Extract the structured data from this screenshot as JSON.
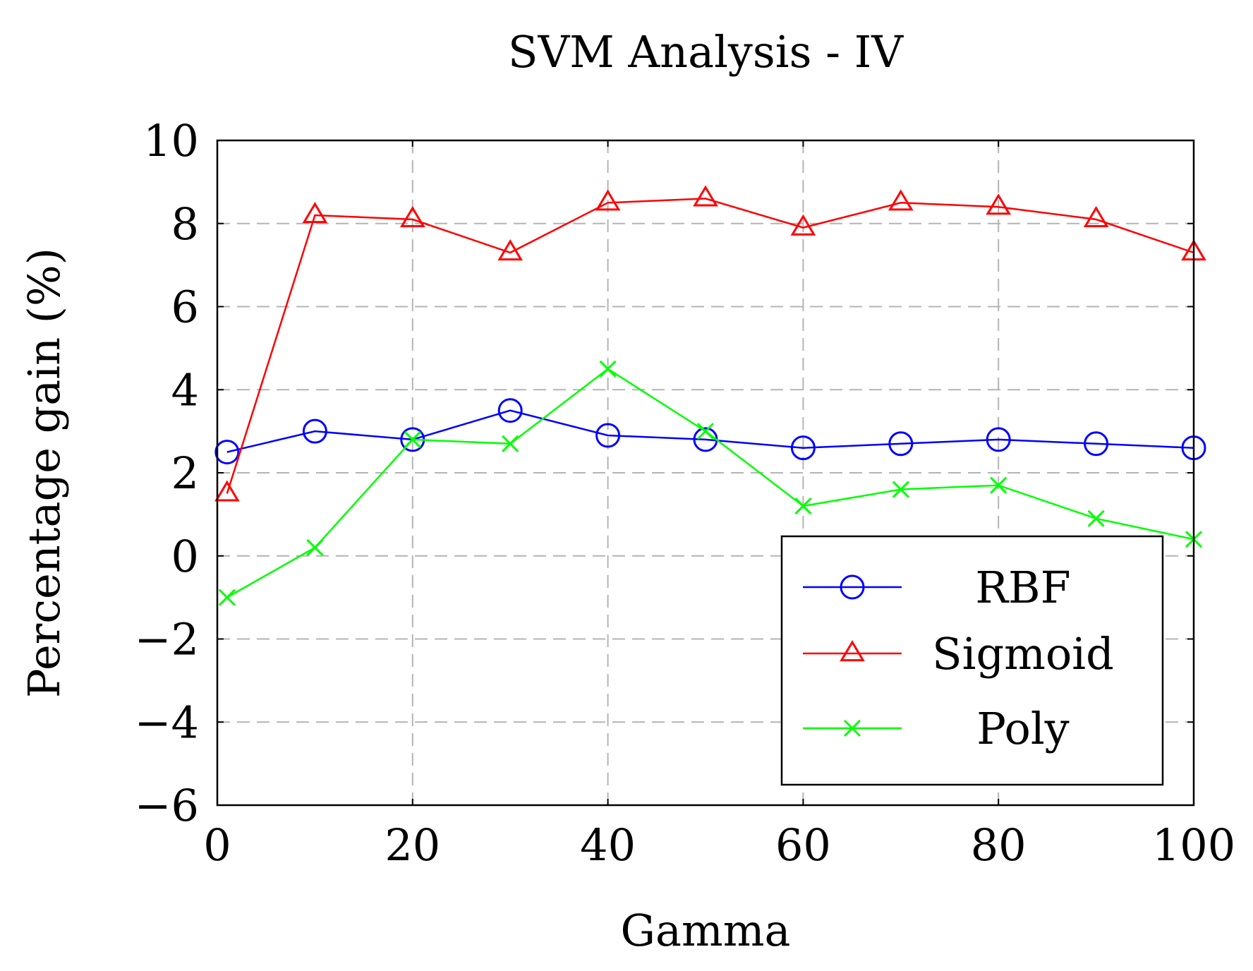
{
  "chart_data": {
    "type": "line",
    "title": "SVM Analysis - IV",
    "xlabel": "Gamma",
    "ylabel": "Percentage gain (%)",
    "xlim": [
      0,
      100
    ],
    "ylim": [
      -6,
      10
    ],
    "xticks": [
      0,
      20,
      40,
      60,
      80,
      100
    ],
    "xtick_labels": [
      "0",
      "20",
      "40",
      "60",
      "80",
      "100"
    ],
    "yticks": [
      -6,
      -4,
      -2,
      0,
      2,
      4,
      6,
      8,
      10
    ],
    "ytick_labels": [
      "−6",
      "−4",
      "−2",
      "0",
      "2",
      "4",
      "6",
      "8",
      "10"
    ],
    "grid": true,
    "legend_position": "bottom-right",
    "x": [
      1,
      10,
      20,
      30,
      40,
      50,
      60,
      70,
      80,
      90,
      100
    ],
    "series": [
      {
        "name": "RBF",
        "color": "#0000ff",
        "marker": "circle",
        "values": [
          2.5,
          3.0,
          2.8,
          3.5,
          2.9,
          2.8,
          2.6,
          2.7,
          2.8,
          2.7,
          2.6
        ]
      },
      {
        "name": "Sigmoid",
        "color": "#ff0000",
        "marker": "triangle",
        "values": [
          1.5,
          8.2,
          8.1,
          7.3,
          8.5,
          8.6,
          7.9,
          8.5,
          8.4,
          8.1,
          7.3
        ]
      },
      {
        "name": "Poly",
        "color": "#00ff00",
        "marker": "x",
        "values": [
          -1.0,
          0.2,
          2.8,
          2.7,
          4.5,
          3.0,
          1.2,
          1.6,
          1.7,
          0.9,
          0.4
        ]
      }
    ]
  }
}
